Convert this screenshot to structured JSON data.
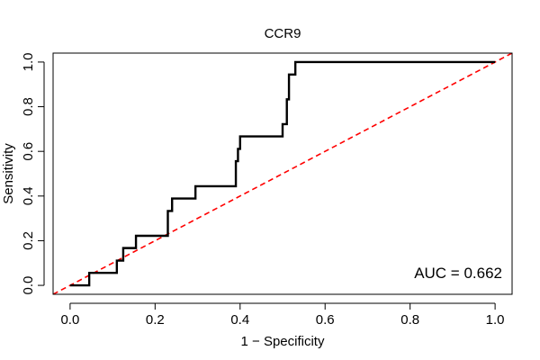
{
  "chart_data": {
    "type": "line",
    "title": "CCR9",
    "xlabel": "1 − Specificity",
    "ylabel": "Sensitivity",
    "xlim": [
      -0.04,
      1.04
    ],
    "ylim": [
      -0.04,
      1.04
    ],
    "xticks": [
      0.0,
      0.2,
      0.4,
      0.6,
      0.8,
      1.0
    ],
    "xtick_labels": [
      "0.0",
      "0.2",
      "0.4",
      "0.6",
      "0.8",
      "1.0"
    ],
    "yticks": [
      0.0,
      0.2,
      0.4,
      0.6,
      0.8,
      1.0
    ],
    "ytick_labels": [
      "0.0",
      "0.2",
      "0.4",
      "0.6",
      "0.8",
      "1.0"
    ],
    "annotation": "AUC = 0.662",
    "series": [
      {
        "name": "ROC curve",
        "color": "#000000",
        "style": "solid",
        "x": [
          0.0,
          0.045,
          0.045,
          0.11,
          0.11,
          0.125,
          0.125,
          0.155,
          0.155,
          0.23,
          0.23,
          0.24,
          0.24,
          0.295,
          0.295,
          0.39,
          0.39,
          0.395,
          0.395,
          0.4,
          0.4,
          0.5,
          0.5,
          0.51,
          0.51,
          0.515,
          0.515,
          0.53,
          0.53,
          1.0
        ],
        "y": [
          0.0,
          0.0,
          0.056,
          0.056,
          0.111,
          0.111,
          0.167,
          0.167,
          0.222,
          0.222,
          0.333,
          0.333,
          0.389,
          0.389,
          0.444,
          0.444,
          0.556,
          0.556,
          0.611,
          0.611,
          0.667,
          0.667,
          0.722,
          0.722,
          0.833,
          0.833,
          0.944,
          0.944,
          1.0,
          1.0
        ]
      },
      {
        "name": "Reference diagonal",
        "color": "#ff0000",
        "style": "dashed",
        "x": [
          -0.04,
          1.04
        ],
        "y": [
          -0.04,
          1.04
        ]
      }
    ]
  }
}
